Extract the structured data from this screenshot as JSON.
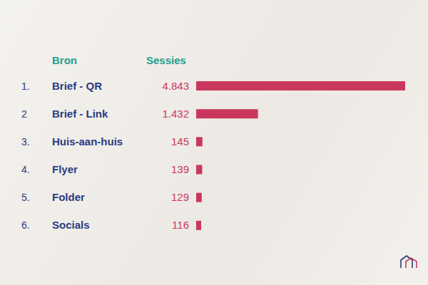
{
  "chart_data": {
    "type": "bar",
    "orientation": "horizontal",
    "headers": [
      "Bron",
      "Sessies"
    ],
    "ranks": [
      "1.",
      "2",
      "3.",
      "4.",
      "5.",
      "6."
    ],
    "categories": [
      "Brief - QR",
      "Brief - Link",
      "Huis-aan-huis",
      "Flyer",
      "Folder",
      "Socials"
    ],
    "values": [
      4843,
      1432,
      145,
      139,
      129,
      116
    ],
    "value_labels": [
      "4.843",
      "1.432",
      "145",
      "139",
      "129",
      "116"
    ],
    "color": "#c9385c",
    "xlim": [
      0,
      4843
    ],
    "data_labels": true,
    "tick_labels": "y"
  }
}
